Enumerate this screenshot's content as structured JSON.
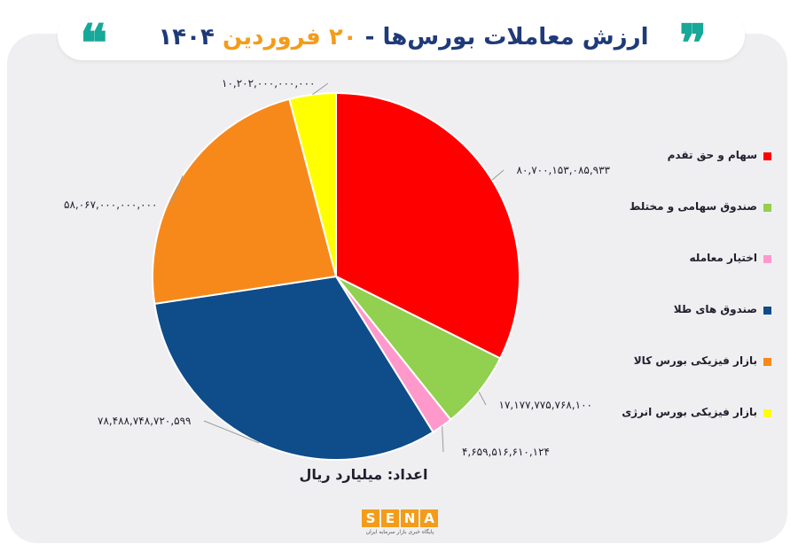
{
  "header": {
    "title_main": "ارزش معاملات بورس‌ها - ",
    "title_day": "۲۰",
    "title_month": " فروردین ",
    "title_year": "۱۴۰۴",
    "accent_color": "#f39c1a",
    "title_color": "#1f3a78",
    "quote_color": "#16a898"
  },
  "chart_data": {
    "type": "pie",
    "unit_note": "اعداد: میلیارد ریال",
    "legend_position": "right",
    "slices": [
      {
        "name": "سهام و حق تقدم",
        "value": 80700153085933,
        "label": "۸۰,۷۰۰,۱۵۳,۰۸۵,۹۳۳",
        "color": "#ff0000"
      },
      {
        "name": "صندوق سهامی و مختلط",
        "value": 17177775768100,
        "label": "۱۷,۱۷۷,۷۷۵,۷۶۸,۱۰۰",
        "color": "#92d050"
      },
      {
        "name": "اختیار معامله",
        "value": 4659516610124,
        "label": "۴,۶۵۹,۵۱۶,۶۱۰,۱۲۴",
        "color": "#ff99cc"
      },
      {
        "name": "صندوق های طلا",
        "value": 78488748720599,
        "label": "۷۸,۴۸۸,۷۴۸,۷۲۰,۵۹۹",
        "color": "#0e4c8a"
      },
      {
        "name": "بازار فیزیکی بورس کالا",
        "value": 58067000000000,
        "label": "۵۸,۰۶۷,۰۰۰,۰۰۰,۰۰۰",
        "color": "#f7891b"
      },
      {
        "name": "بازار فیزیکی بورس انرژی",
        "value": 10202000000000,
        "label": "۱۰,۲۰۲,۰۰۰,۰۰۰,۰۰۰",
        "color": "#ffff00"
      }
    ]
  },
  "logo": {
    "letters": [
      "S",
      "E",
      "N",
      "A"
    ],
    "subtitle": "پایگاه خبری بازار سرمایه ایران"
  }
}
